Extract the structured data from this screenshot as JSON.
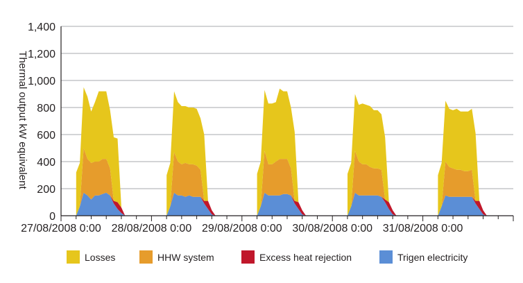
{
  "chart_data": {
    "type": "area",
    "stacked": true,
    "title": "",
    "xlabel": "",
    "ylabel": "Thermal output kW equivalent",
    "ylim": [
      0,
      1400
    ],
    "yticks": [
      0,
      200,
      400,
      600,
      800,
      1000,
      1200,
      1400
    ],
    "ytick_labels": [
      "0",
      "200",
      "400",
      "600",
      "800",
      "1,000",
      "1,200",
      "1,400"
    ],
    "grid": true,
    "legend_position": "bottom",
    "x_unit": "days since 27/08/2008 0:00",
    "xlim": [
      0,
      5
    ],
    "xtick_positions": [
      0,
      1,
      2,
      3,
      4
    ],
    "xtick_labels": [
      "27/08/2008 0:00",
      "28/08/2008 0:00",
      "29/08/2008 0:00",
      "30/08/2008 0:00",
      "31/08/2008 0:00"
    ],
    "x": [
      0.167,
      0.208,
      0.25,
      0.292,
      0.333,
      0.375,
      0.417,
      0.458,
      0.5,
      0.542,
      0.583,
      0.625,
      0.667,
      0.708,
      0.75,
      0.792,
      0.833
    ],
    "day_starts": [
      0,
      1,
      2,
      3,
      4
    ],
    "series": [
      {
        "name": "Trigen electricity",
        "color": "#5b8ed6",
        "days": [
          [
            0,
            70,
            170,
            150,
            120,
            150,
            150,
            160,
            170,
            150,
            90,
            50,
            20,
            0,
            0,
            0,
            0
          ],
          [
            0,
            70,
            170,
            150,
            150,
            140,
            150,
            140,
            140,
            140,
            90,
            50,
            10,
            0,
            0,
            0,
            0
          ],
          [
            0,
            70,
            170,
            150,
            150,
            150,
            150,
            160,
            160,
            150,
            90,
            50,
            10,
            0,
            0,
            0,
            0
          ],
          [
            0,
            70,
            170,
            150,
            150,
            150,
            150,
            150,
            150,
            140,
            100,
            50,
            10,
            0,
            0,
            0,
            0
          ],
          [
            0,
            70,
            150,
            140,
            140,
            140,
            140,
            140,
            140,
            140,
            90,
            50,
            10,
            0,
            0,
            0,
            0
          ]
        ]
      },
      {
        "name": "Excess heat rejection",
        "color": "#c0172b",
        "days": [
          [
            0,
            0,
            0,
            0,
            0,
            0,
            0,
            0,
            0,
            0,
            20,
            50,
            40,
            0,
            0,
            0,
            0
          ],
          [
            0,
            0,
            0,
            0,
            0,
            0,
            0,
            0,
            0,
            0,
            20,
            60,
            30,
            0,
            0,
            0,
            0
          ],
          [
            0,
            0,
            0,
            0,
            0,
            0,
            0,
            0,
            0,
            0,
            20,
            50,
            30,
            0,
            0,
            0,
            0
          ],
          [
            0,
            0,
            0,
            0,
            0,
            0,
            0,
            0,
            0,
            0,
            20,
            50,
            30,
            0,
            0,
            0,
            0
          ],
          [
            0,
            0,
            0,
            0,
            0,
            0,
            0,
            0,
            0,
            0,
            20,
            60,
            30,
            0,
            0,
            0,
            0
          ]
        ]
      },
      {
        "name": "HHW system",
        "color": "#e69c2c",
        "days": [
          [
            0,
            0,
            330,
            270,
            270,
            250,
            250,
            260,
            250,
            200,
            0,
            0,
            0,
            0,
            0,
            0,
            0
          ],
          [
            0,
            0,
            300,
            250,
            230,
            250,
            230,
            240,
            230,
            200,
            0,
            0,
            0,
            0,
            0,
            0,
            0
          ],
          [
            0,
            0,
            310,
            230,
            230,
            250,
            270,
            260,
            260,
            200,
            0,
            0,
            0,
            0,
            0,
            0,
            0
          ],
          [
            0,
            0,
            310,
            250,
            230,
            230,
            210,
            200,
            200,
            200,
            0,
            0,
            0,
            0,
            0,
            0,
            0
          ],
          [
            0,
            0,
            250,
            220,
            210,
            200,
            200,
            190,
            190,
            200,
            0,
            0,
            0,
            0,
            0,
            0,
            0
          ]
        ]
      },
      {
        "name": "Losses",
        "color": "#e6c61c",
        "days": [
          [
            320,
            320,
            450,
            460,
            380,
            440,
            520,
            500,
            500,
            430,
            470,
            470,
            0,
            0,
            0,
            0,
            0
          ],
          [
            300,
            320,
            450,
            440,
            430,
            420,
            420,
            420,
            420,
            380,
            490,
            0,
            0,
            0,
            0,
            0,
            0
          ],
          [
            310,
            330,
            450,
            450,
            450,
            440,
            520,
            500,
            500,
            450,
            510,
            0,
            0,
            0,
            0,
            0,
            0
          ],
          [
            310,
            320,
            420,
            420,
            450,
            440,
            450,
            430,
            430,
            410,
            460,
            0,
            0,
            0,
            0,
            0,
            0
          ],
          [
            300,
            320,
            450,
            430,
            430,
            450,
            430,
            440,
            440,
            450,
            500,
            0,
            0,
            0,
            0,
            0,
            0
          ]
        ]
      }
    ],
    "legend": [
      {
        "name": "Losses",
        "color": "#e6c61c"
      },
      {
        "name": "HHW system",
        "color": "#e69c2c"
      },
      {
        "name": "Excess heat rejection",
        "color": "#c0172b"
      },
      {
        "name": "Trigen electricity",
        "color": "#5b8ed6"
      }
    ],
    "axis_color": "#231f20",
    "grid_color": "#a7a9ac"
  }
}
